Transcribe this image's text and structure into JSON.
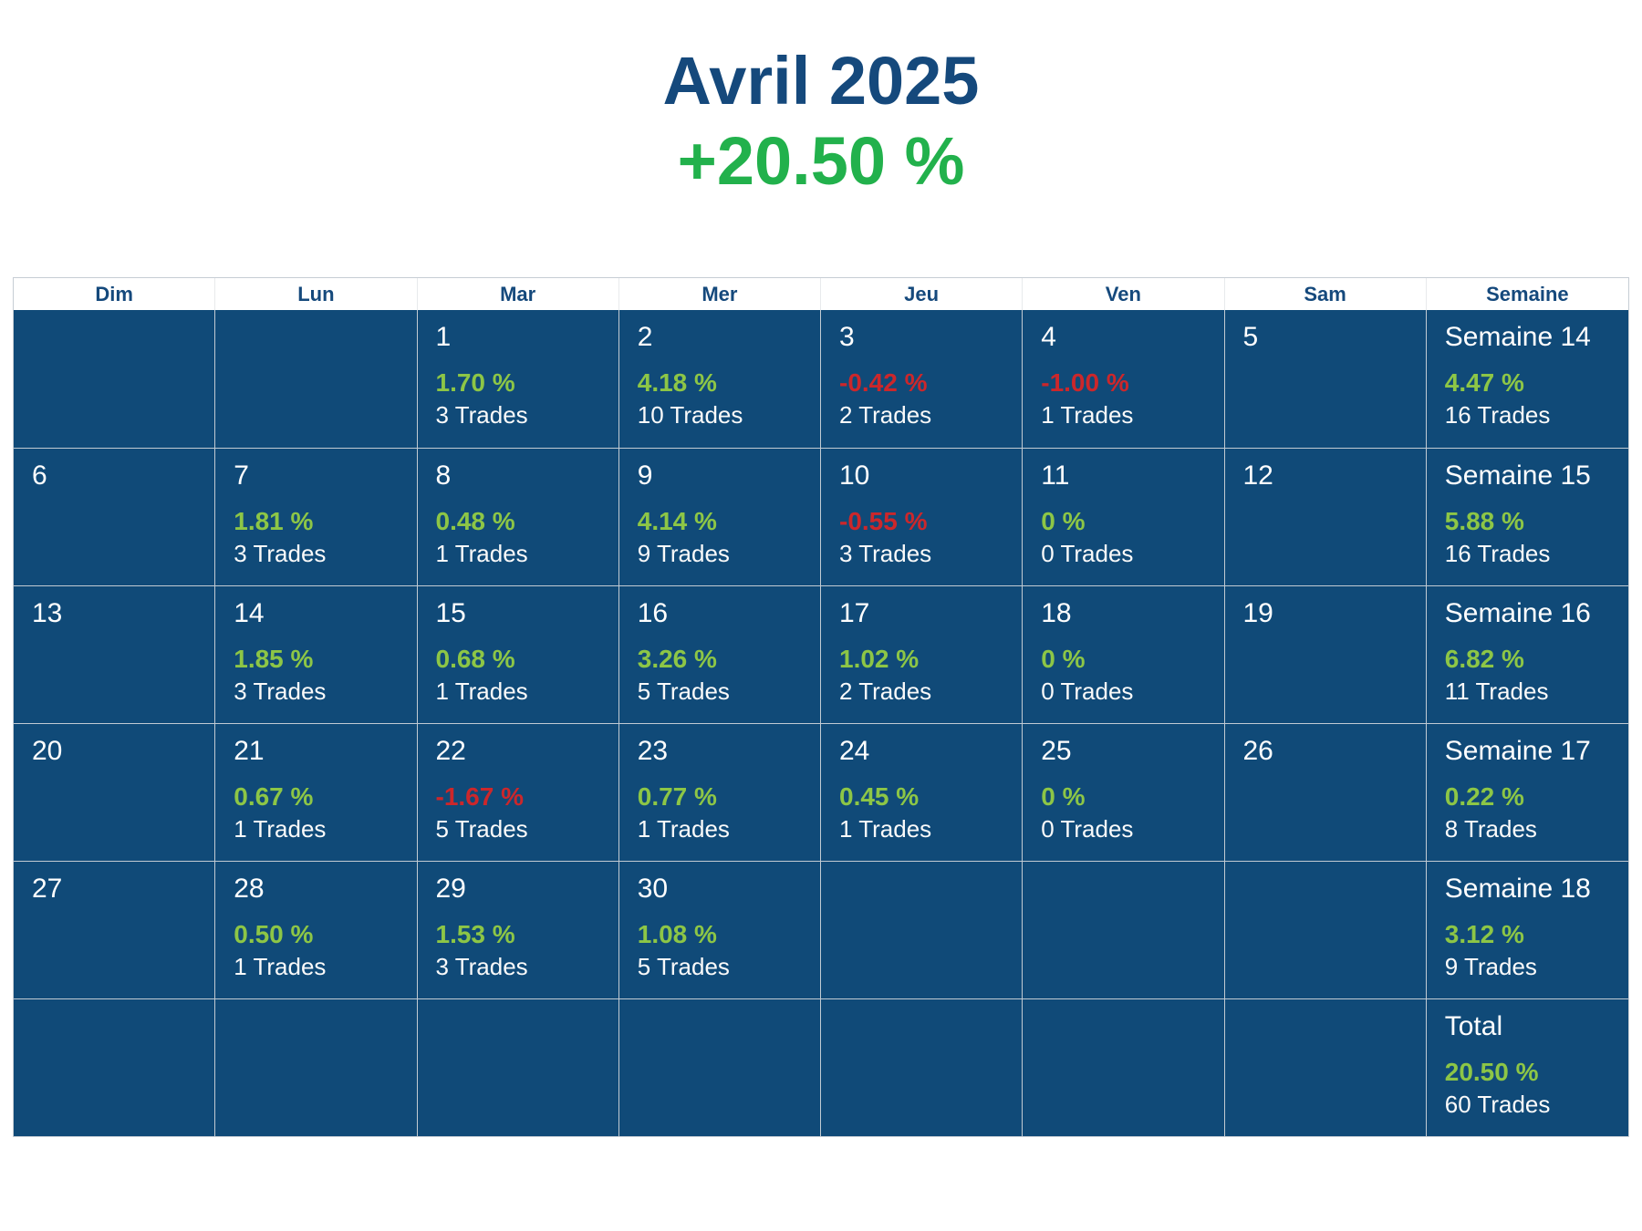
{
  "page": {
    "title": "Avril 2025",
    "subtitle": "+20.50 %"
  },
  "colors": {
    "title_navy": "#15497C",
    "title_green": "#22B14C",
    "cell_background": "#104A78",
    "positive_green": "#8DC646",
    "negative_red": "#CC272B",
    "gridline_gray": "#C2CBD3"
  },
  "calendar": {
    "headers": [
      "Dim",
      "Lun",
      "Mar",
      "Mer",
      "Jeu",
      "Ven",
      "Sam",
      "Semaine"
    ],
    "rows": [
      {
        "cells": [
          {},
          {},
          {
            "day": "1",
            "pct": "1.70 %",
            "trades": "3 Trades",
            "dir": "pos"
          },
          {
            "day": "2",
            "pct": "4.18 %",
            "trades": "10 Trades",
            "dir": "pos"
          },
          {
            "day": "3",
            "pct": "-0.42 %",
            "trades": "2 Trades",
            "dir": "neg"
          },
          {
            "day": "4",
            "pct": "-1.00 %",
            "trades": "1 Trades",
            "dir": "neg"
          },
          {
            "day": "5"
          },
          {
            "label": "Semaine 14",
            "pct": "4.47 %",
            "trades": "16 Trades",
            "dir": "pos"
          }
        ]
      },
      {
        "cells": [
          {
            "day": "6"
          },
          {
            "day": "7",
            "pct": "1.81 %",
            "trades": "3 Trades",
            "dir": "pos"
          },
          {
            "day": "8",
            "pct": "0.48 %",
            "trades": "1 Trades",
            "dir": "pos"
          },
          {
            "day": "9",
            "pct": "4.14 %",
            "trades": "9 Trades",
            "dir": "pos"
          },
          {
            "day": "10",
            "pct": "-0.55 %",
            "trades": "3 Trades",
            "dir": "neg"
          },
          {
            "day": "11",
            "pct": "0 %",
            "trades": "0 Trades",
            "dir": "pos"
          },
          {
            "day": "12"
          },
          {
            "label": "Semaine 15",
            "pct": "5.88 %",
            "trades": "16 Trades",
            "dir": "pos"
          }
        ]
      },
      {
        "cells": [
          {
            "day": "13"
          },
          {
            "day": "14",
            "pct": "1.85 %",
            "trades": "3 Trades",
            "dir": "pos"
          },
          {
            "day": "15",
            "pct": "0.68 %",
            "trades": "1 Trades",
            "dir": "pos"
          },
          {
            "day": "16",
            "pct": "3.26 %",
            "trades": "5 Trades",
            "dir": "pos"
          },
          {
            "day": "17",
            "pct": "1.02 %",
            "trades": "2 Trades",
            "dir": "pos"
          },
          {
            "day": "18",
            "pct": "0 %",
            "trades": "0 Trades",
            "dir": "pos"
          },
          {
            "day": "19"
          },
          {
            "label": "Semaine 16",
            "pct": "6.82 %",
            "trades": "11 Trades",
            "dir": "pos"
          }
        ]
      },
      {
        "cells": [
          {
            "day": "20"
          },
          {
            "day": "21",
            "pct": "0.67 %",
            "trades": "1 Trades",
            "dir": "pos"
          },
          {
            "day": "22",
            "pct": "-1.67 %",
            "trades": "5 Trades",
            "dir": "neg"
          },
          {
            "day": "23",
            "pct": "0.77 %",
            "trades": "1 Trades",
            "dir": "pos"
          },
          {
            "day": "24",
            "pct": "0.45 %",
            "trades": "1 Trades",
            "dir": "pos"
          },
          {
            "day": "25",
            "pct": "0 %",
            "trades": "0 Trades",
            "dir": "pos"
          },
          {
            "day": "26"
          },
          {
            "label": "Semaine 17",
            "pct": "0.22 %",
            "trades": "8 Trades",
            "dir": "pos"
          }
        ]
      },
      {
        "cells": [
          {
            "day": "27"
          },
          {
            "day": "28",
            "pct": "0.50 %",
            "trades": "1 Trades",
            "dir": "pos"
          },
          {
            "day": "29",
            "pct": "1.53 %",
            "trades": "3 Trades",
            "dir": "pos"
          },
          {
            "day": "30",
            "pct": "1.08 %",
            "trades": "5 Trades",
            "dir": "pos"
          },
          {},
          {},
          {},
          {
            "label": "Semaine 18",
            "pct": "3.12 %",
            "trades": "9 Trades",
            "dir": "pos"
          }
        ]
      },
      {
        "cells": [
          {},
          {},
          {},
          {},
          {},
          {},
          {},
          {
            "label": "Total",
            "pct": "20.50 %",
            "trades": "60 Trades",
            "dir": "pos"
          }
        ]
      }
    ]
  }
}
